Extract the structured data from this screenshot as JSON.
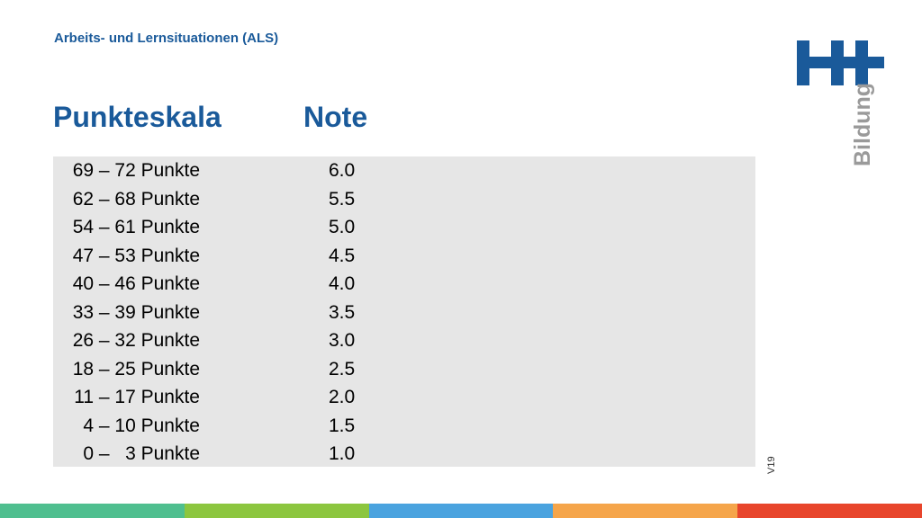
{
  "header": {
    "subtitle": "Arbeits- und Lernsituationen (ALS)",
    "col1_heading": "Punkteskala",
    "col2_heading": "Note"
  },
  "rows": [
    {
      "range": "69 – 72 Punkte",
      "grade": "6.0"
    },
    {
      "range": "62 – 68 Punkte",
      "grade": "5.5"
    },
    {
      "range": "54 – 61 Punkte",
      "grade": "5.0"
    },
    {
      "range": "47 – 53 Punkte",
      "grade": "4.5"
    },
    {
      "range": "40 – 46 Punkte",
      "grade": "4.0"
    },
    {
      "range": "33 – 39 Punkte",
      "grade": "3.5"
    },
    {
      "range": "26 – 32 Punkte",
      "grade": "3.0"
    },
    {
      "range": "18 – 25 Punkte",
      "grade": "2.5"
    },
    {
      "range": "11 – 17 Punkte",
      "grade": "2.0"
    },
    {
      "range": "4 – 10 Punkte",
      "grade": "1.5"
    },
    {
      "range": "0 –   3 Punkte",
      "grade": "1.0"
    }
  ],
  "version": "V19",
  "logo": {
    "mark": "H+",
    "word": "Bildung",
    "color": "#1a5a9a",
    "word_color": "#9a9a9a"
  },
  "stripe_colors": [
    "#4fbf8f",
    "#8cc63f",
    "#4aa3df",
    "#f5a54a",
    "#e8452c"
  ]
}
